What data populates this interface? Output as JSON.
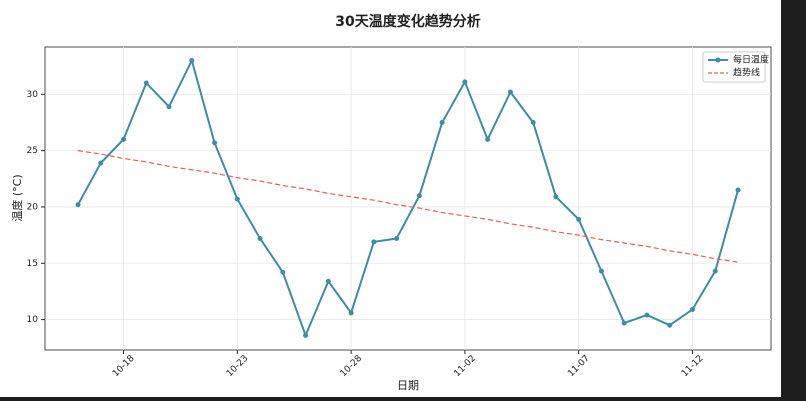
{
  "chart_data": {
    "type": "line",
    "title": "30天温度变化趋势分析",
    "x_label": "日期",
    "y_label": "温度 (°C)",
    "categories": [
      null,
      null,
      "10-18",
      null,
      null,
      null,
      null,
      "10-23",
      null,
      null,
      null,
      null,
      "10-28",
      null,
      null,
      null,
      null,
      "11-02",
      null,
      null,
      null,
      null,
      "11-07",
      null,
      null,
      null,
      null,
      "11-12",
      null,
      null
    ],
    "series": [
      {
        "name": "每日温度",
        "color": "#3a8ea8",
        "linestyle": "solid",
        "marker": "o",
        "values": [
          20.2,
          23.9,
          26.0,
          31.0,
          28.9,
          33.0,
          25.7,
          20.7,
          17.2,
          14.2,
          8.6,
          13.4,
          10.6,
          16.9,
          17.2,
          21.0,
          27.5,
          31.1,
          26.0,
          30.2,
          27.5,
          20.9,
          18.9,
          14.3,
          9.7,
          10.4,
          9.5,
          10.9,
          14.3,
          21.5
        ]
      },
      {
        "name": "趋势线",
        "color": "#e8604c",
        "linestyle": "dashed",
        "marker": null,
        "values": [
          25.0,
          24.7,
          24.3,
          24.0,
          23.6,
          23.3,
          23.0,
          22.6,
          22.3,
          21.9,
          21.6,
          21.2,
          20.9,
          20.6,
          20.2,
          19.9,
          19.5,
          19.2,
          18.9,
          18.5,
          18.2,
          17.8,
          17.5,
          17.1,
          16.8,
          16.5,
          16.1,
          15.8,
          15.4,
          15.1
        ]
      }
    ],
    "ylim": [
      7.3,
      34.2
    ],
    "yticks": [
      10,
      15,
      20,
      25,
      30
    ],
    "grid": true,
    "legend": "upper right"
  }
}
